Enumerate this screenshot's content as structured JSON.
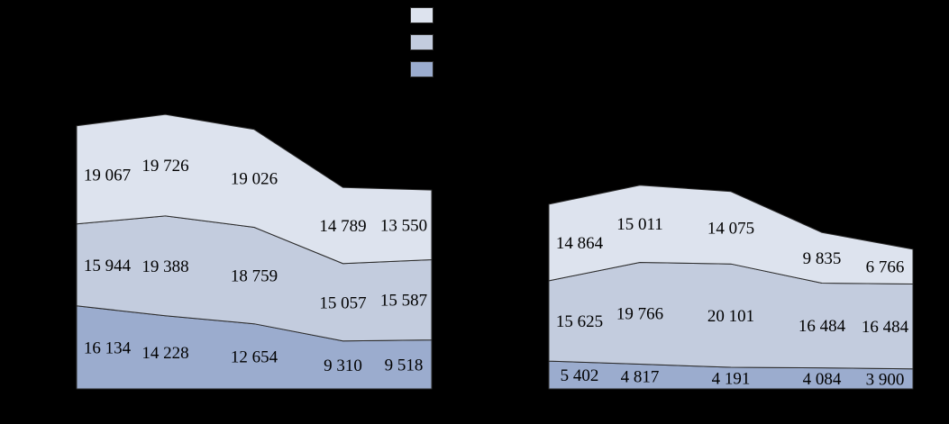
{
  "background_color": "#000000",
  "label_color": "#000000",
  "band_border_color": "#2b2b2b",
  "legend": {
    "position": "top-center",
    "swatches": [
      {
        "name": "legend-swatch-light",
        "color": "#dde3ee"
      },
      {
        "name": "legend-swatch-medium",
        "color": "#c3ccde"
      },
      {
        "name": "legend-swatch-dark",
        "color": "#9bacce"
      }
    ]
  },
  "chart_data": [
    {
      "type": "area",
      "stacked": true,
      "title": "",
      "xlabel": "",
      "ylabel": "",
      "grid": false,
      "data_labels": true,
      "num_points": 5,
      "series": [
        {
          "name": "bottom",
          "color": "#9bacce",
          "values": [
            16134,
            14228,
            12654,
            9310,
            9518
          ]
        },
        {
          "name": "middle",
          "color": "#c3ccde",
          "values": [
            15944,
            19388,
            18759,
            15057,
            15587
          ]
        },
        {
          "name": "top",
          "color": "#dde3ee",
          "values": [
            19067,
            19726,
            19026,
            14789,
            13550
          ]
        }
      ]
    },
    {
      "type": "area",
      "stacked": true,
      "title": "",
      "xlabel": "",
      "ylabel": "",
      "grid": false,
      "data_labels": true,
      "num_points": 5,
      "series": [
        {
          "name": "bottom",
          "color": "#9bacce",
          "values": [
            5402,
            4817,
            4191,
            4084,
            3900
          ]
        },
        {
          "name": "middle",
          "color": "#c3ccde",
          "values": [
            15625,
            19766,
            20101,
            16484,
            16484
          ]
        },
        {
          "name": "top",
          "color": "#dde3ee",
          "values": [
            14864,
            15011,
            14075,
            9835,
            6766
          ]
        }
      ]
    }
  ]
}
